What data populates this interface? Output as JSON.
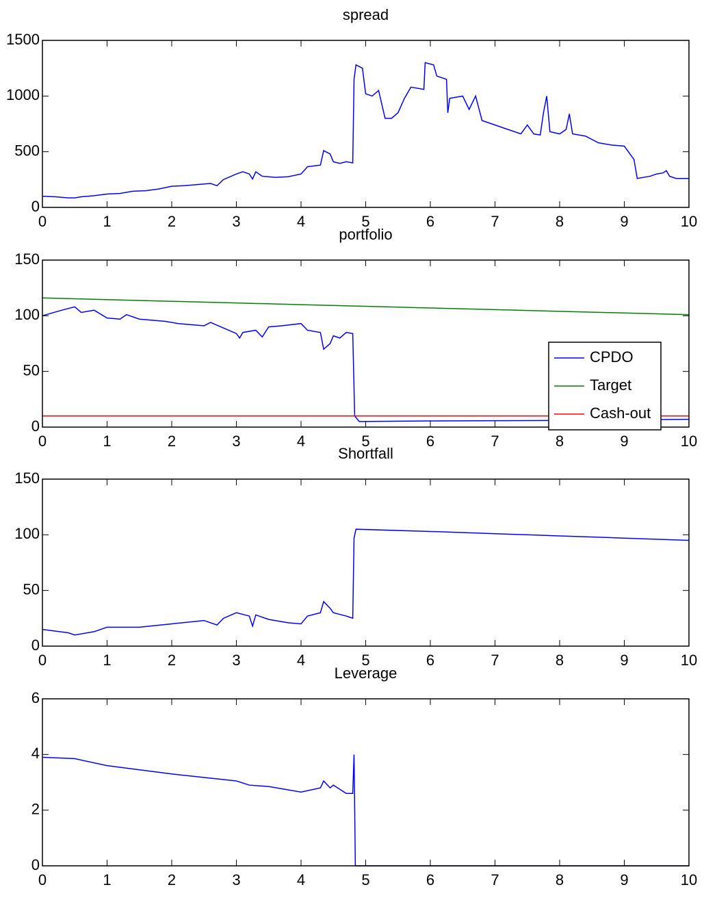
{
  "chart_data": [
    {
      "type": "line",
      "title": "spread",
      "xlim": [
        0,
        10
      ],
      "ylim": [
        0,
        1500
      ],
      "xticks": [
        0,
        1,
        2,
        3,
        4,
        5,
        6,
        7,
        8,
        9,
        10
      ],
      "yticks": [
        0,
        500,
        1000,
        1500
      ],
      "series": [
        {
          "color": "#0000ff",
          "x": [
            0,
            0.2,
            0.4,
            0.5,
            0.6,
            0.8,
            1.0,
            1.2,
            1.4,
            1.6,
            1.8,
            2.0,
            2.2,
            2.4,
            2.6,
            2.7,
            2.8,
            3.0,
            3.1,
            3.2,
            3.25,
            3.3,
            3.4,
            3.6,
            3.8,
            4.0,
            4.1,
            4.3,
            4.35,
            4.45,
            4.5,
            4.6,
            4.7,
            4.8,
            4.82,
            4.85,
            4.95,
            5.0,
            5.1,
            5.2,
            5.3,
            5.4,
            5.5,
            5.6,
            5.7,
            5.9,
            5.92,
            6.05,
            6.1,
            6.25,
            6.27,
            6.3,
            6.5,
            6.6,
            6.7,
            6.8,
            7.0,
            7.2,
            7.4,
            7.5,
            7.6,
            7.7,
            7.75,
            7.8,
            7.85,
            8.0,
            8.1,
            8.15,
            8.2,
            8.4,
            8.6,
            8.8,
            9.0,
            9.15,
            9.2,
            9.4,
            9.5,
            9.6,
            9.65,
            9.7,
            9.8,
            10
          ],
          "values": [
            100,
            95,
            85,
            85,
            95,
            105,
            120,
            125,
            145,
            150,
            165,
            190,
            195,
            205,
            215,
            195,
            250,
            300,
            320,
            300,
            255,
            320,
            280,
            270,
            275,
            300,
            365,
            380,
            510,
            480,
            410,
            395,
            410,
            400,
            1150,
            1280,
            1250,
            1020,
            1000,
            1050,
            800,
            800,
            850,
            980,
            1080,
            1060,
            1300,
            1280,
            1180,
            1150,
            850,
            980,
            1000,
            880,
            1000,
            780,
            740,
            700,
            660,
            740,
            660,
            650,
            850,
            1000,
            680,
            660,
            700,
            840,
            660,
            640,
            580,
            560,
            550,
            430,
            260,
            280,
            300,
            310,
            330,
            280,
            260,
            260
          ]
        }
      ]
    },
    {
      "type": "line",
      "title": "portfolio",
      "xlim": [
        0,
        10
      ],
      "ylim": [
        0,
        150
      ],
      "xticks": [
        0,
        1,
        2,
        3,
        4,
        5,
        6,
        7,
        8,
        9,
        10
      ],
      "yticks": [
        0,
        50,
        100,
        150
      ],
      "legend": "lower right",
      "series": [
        {
          "name": "CPDO",
          "color": "#0000ff",
          "x": [
            0,
            0.3,
            0.5,
            0.6,
            0.8,
            1.0,
            1.2,
            1.3,
            1.5,
            1.7,
            1.9,
            2.1,
            2.3,
            2.5,
            2.6,
            2.8,
            3.0,
            3.05,
            3.1,
            3.3,
            3.4,
            3.5,
            3.7,
            4.0,
            4.1,
            4.3,
            4.35,
            4.45,
            4.5,
            4.6,
            4.7,
            4.8,
            4.83,
            4.9,
            6,
            8,
            10
          ],
          "values": [
            100,
            105,
            108,
            103,
            105,
            98,
            97,
            101,
            97,
            96,
            95,
            93,
            92,
            91,
            94,
            89,
            84,
            80,
            85,
            87,
            81,
            90,
            91,
            93,
            87,
            85,
            70,
            75,
            82,
            80,
            85,
            84,
            10,
            5,
            5.5,
            6,
            7
          ]
        },
        {
          "name": "Target",
          "color": "#008000",
          "x": [
            0,
            1,
            2,
            3,
            4,
            5,
            6,
            7,
            8,
            9,
            10
          ],
          "values": [
            116,
            114.5,
            113,
            111.5,
            110,
            108.5,
            107,
            105.5,
            104,
            102.5,
            101
          ]
        },
        {
          "name": "Cash-out",
          "color": "#ff0000",
          "x": [
            0,
            10
          ],
          "values": [
            10,
            10
          ]
        }
      ]
    },
    {
      "type": "line",
      "title": "Shortfall",
      "xlim": [
        0,
        10
      ],
      "ylim": [
        0,
        150
      ],
      "xticks": [
        0,
        1,
        2,
        3,
        4,
        5,
        6,
        7,
        8,
        9,
        10
      ],
      "yticks": [
        0,
        50,
        100,
        150
      ],
      "series": [
        {
          "color": "#0000ff",
          "x": [
            0,
            0.4,
            0.5,
            0.8,
            1.0,
            1.5,
            2.0,
            2.5,
            2.7,
            2.8,
            3.0,
            3.2,
            3.25,
            3.3,
            3.5,
            3.8,
            4.0,
            4.1,
            4.3,
            4.35,
            4.45,
            4.5,
            4.7,
            4.8,
            4.82,
            4.85,
            6,
            7,
            8,
            9,
            10
          ],
          "values": [
            15,
            12,
            10,
            13,
            17,
            17,
            20,
            23,
            19,
            25,
            30,
            27,
            18,
            28,
            24,
            21,
            20,
            27,
            30,
            40,
            34,
            30,
            27,
            25,
            97,
            105,
            103,
            101,
            99,
            97,
            95
          ]
        }
      ]
    },
    {
      "type": "line",
      "title": "Leverage",
      "xlim": [
        0,
        10
      ],
      "ylim": [
        0,
        6
      ],
      "xticks": [
        0,
        1,
        2,
        3,
        4,
        5,
        6,
        7,
        8,
        9,
        10
      ],
      "yticks": [
        0,
        2,
        4,
        6
      ],
      "series": [
        {
          "color": "#0000ff",
          "x": [
            0,
            0.5,
            1.0,
            2.0,
            3.0,
            3.2,
            3.5,
            4.0,
            4.3,
            4.35,
            4.45,
            4.5,
            4.7,
            4.8,
            4.82,
            4.84,
            10
          ],
          "values": [
            3.9,
            3.85,
            3.6,
            3.3,
            3.05,
            2.9,
            2.85,
            2.65,
            2.8,
            3.05,
            2.8,
            2.9,
            2.6,
            2.6,
            4.0,
            0,
            0
          ]
        }
      ]
    }
  ]
}
